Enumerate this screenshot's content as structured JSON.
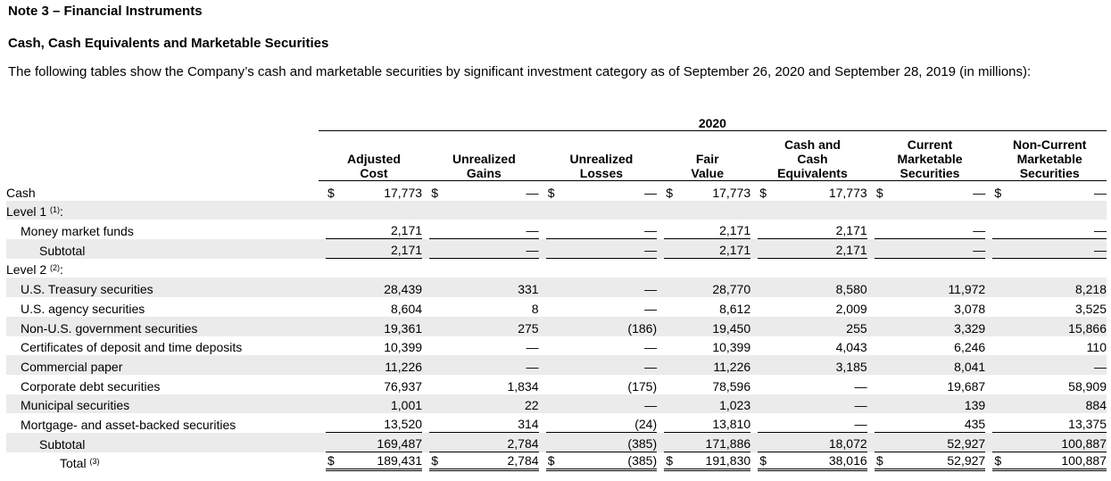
{
  "note_title": "Note 3 – Financial Instruments",
  "section_title": "Cash, Cash Equivalents and Marketable Securities",
  "intro": "The following tables show the Company’s cash and marketable securities by significant investment category as of September 26, 2020 and September 28, 2019 (in millions):",
  "year": "2020",
  "columns": [
    [
      "Adjusted",
      "Cost"
    ],
    [
      "Unrealized",
      "Gains"
    ],
    [
      "Unrealized",
      "Losses"
    ],
    [
      "Fair",
      "Value"
    ],
    [
      "Cash and",
      "Cash",
      "Equivalents"
    ],
    [
      "Current",
      "Marketable",
      "Securities"
    ],
    [
      "Non-Current",
      "Marketable",
      "Securities"
    ]
  ],
  "rows": [
    {
      "label": "Cash",
      "indent": 0,
      "values": [
        "17,773",
        "—",
        "—",
        "17,773",
        "17,773",
        "—",
        "—"
      ],
      "dollar": true
    },
    {
      "label": "Level 1",
      "sup": "(1)",
      "suffix": ":",
      "indent": 0,
      "values": []
    },
    {
      "label": "Money market funds",
      "indent": 1,
      "values": [
        "2,171",
        "—",
        "—",
        "2,171",
        "2,171",
        "—",
        "—"
      ],
      "rule": "single"
    },
    {
      "label": "Subtotal",
      "indent": 2,
      "values": [
        "2,171",
        "—",
        "—",
        "2,171",
        "2,171",
        "—",
        "—"
      ],
      "rule": "single"
    },
    {
      "label": "Level 2",
      "sup": "(2)",
      "suffix": ":",
      "indent": 0,
      "values": []
    },
    {
      "label": "U.S. Treasury securities",
      "indent": 1,
      "values": [
        "28,439",
        "331",
        "—",
        "28,770",
        "8,580",
        "11,972",
        "8,218"
      ]
    },
    {
      "label": "U.S. agency securities",
      "indent": 1,
      "values": [
        "8,604",
        "8",
        "—",
        "8,612",
        "2,009",
        "3,078",
        "3,525"
      ]
    },
    {
      "label": "Non-U.S. government securities",
      "indent": 1,
      "values": [
        "19,361",
        "275",
        "(186)",
        "19,450",
        "255",
        "3,329",
        "15,866"
      ]
    },
    {
      "label": "Certificates of deposit and time deposits",
      "indent": 1,
      "values": [
        "10,399",
        "—",
        "—",
        "10,399",
        "4,043",
        "6,246",
        "110"
      ]
    },
    {
      "label": "Commercial paper",
      "indent": 1,
      "values": [
        "11,226",
        "—",
        "—",
        "11,226",
        "3,185",
        "8,041",
        "—"
      ]
    },
    {
      "label": "Corporate debt securities",
      "indent": 1,
      "values": [
        "76,937",
        "1,834",
        "(175)",
        "78,596",
        "—",
        "19,687",
        "58,909"
      ]
    },
    {
      "label": "Municipal securities",
      "indent": 1,
      "values": [
        "1,001",
        "22",
        "—",
        "1,023",
        "—",
        "139",
        "884"
      ]
    },
    {
      "label": "Mortgage- and asset-backed securities",
      "indent": 1,
      "values": [
        "13,520",
        "314",
        "(24)",
        "13,810",
        "—",
        "435",
        "13,375"
      ],
      "rule": "single"
    },
    {
      "label": "Subtotal",
      "indent": 2,
      "values": [
        "169,487",
        "2,784",
        "(385)",
        "171,886",
        "18,072",
        "52,927",
        "100,887"
      ],
      "rule": "single"
    },
    {
      "label": "Total",
      "sup": "(3)",
      "suffix": "",
      "indent": 3,
      "values": [
        "189,431",
        "2,784",
        "(385)",
        "191,830",
        "38,016",
        "52,927",
        "100,887"
      ],
      "dollar": true,
      "rule": "double"
    }
  ],
  "dollar_sign": "$"
}
